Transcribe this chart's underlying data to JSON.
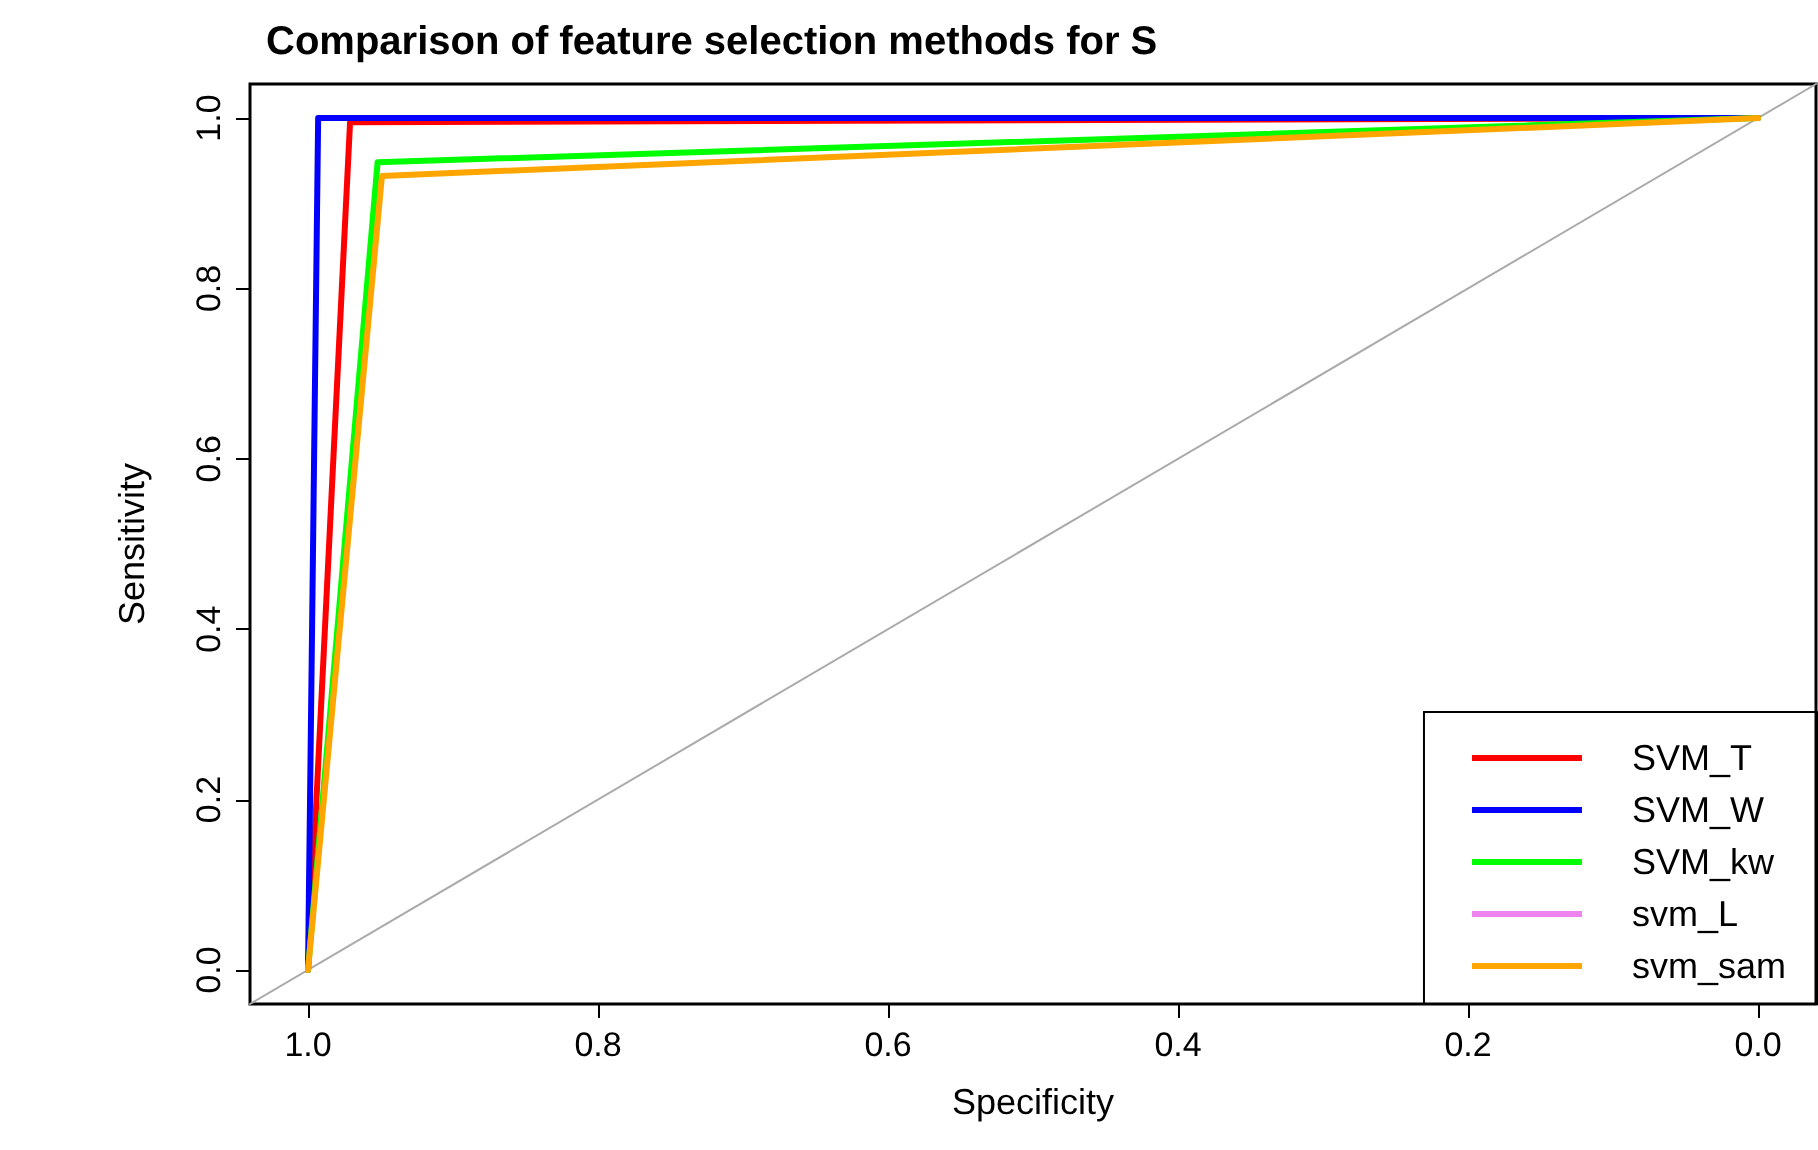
{
  "chart_data": {
    "type": "line",
    "title": "Comparison of feature selection methods for S",
    "xlabel": "Specificity",
    "ylabel": "Sensitivity",
    "xlim": [
      1.04,
      -0.04
    ],
    "ylim": [
      -0.04,
      1.04
    ],
    "xticks": [
      {
        "value": 1,
        "label": "1.0"
      },
      {
        "value": 0.8,
        "label": "0.8"
      },
      {
        "value": 0.6,
        "label": "0.6"
      },
      {
        "value": 0.4,
        "label": "0.4"
      },
      {
        "value": 0.2,
        "label": "0.2"
      },
      {
        "value": 0,
        "label": "0.0"
      }
    ],
    "yticks": [
      {
        "value": 0,
        "label": "0.0"
      },
      {
        "value": 0.2,
        "label": "0.2"
      },
      {
        "value": 0.4,
        "label": "0.4"
      },
      {
        "value": 0.6,
        "label": "0.6"
      },
      {
        "value": 0.8,
        "label": "0.8"
      },
      {
        "value": 1,
        "label": "1.0"
      }
    ],
    "grid": false,
    "legend": "bottom right",
    "marker": "none",
    "line_style": "solid",
    "series": [
      {
        "color": "#aaaaaa",
        "x": [
          1.04,
          -0.04
        ],
        "values": [
          -0.04,
          1.04
        ]
      },
      {
        "name": "SVM_T",
        "color": "#ff0000",
        "x": [
          1,
          0.971,
          0
        ],
        "values": [
          0,
          0.995,
          1
        ]
      },
      {
        "name": "SVM_W",
        "color": "#0000ff",
        "x": [
          1,
          0.993,
          0
        ],
        "values": [
          0,
          1,
          1
        ]
      },
      {
        "name": "SVM_kw",
        "color": "#00ff00",
        "x": [
          1,
          0.952,
          0
        ],
        "values": [
          0,
          0.948,
          1
        ]
      },
      {
        "name": "svm_L",
        "color": "#ee82ee"
      },
      {
        "name": "svm_sam",
        "color": "#ffa500",
        "x": [
          1,
          0.949,
          0
        ],
        "values": [
          0,
          0.932,
          1
        ]
      }
    ]
  }
}
